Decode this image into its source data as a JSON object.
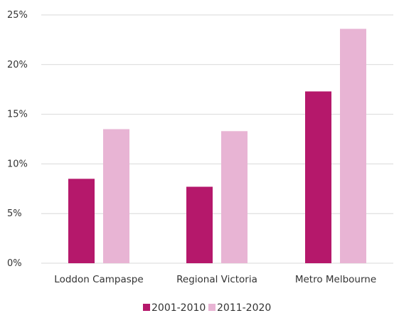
{
  "chart_data": {
    "type": "bar",
    "title": "",
    "xlabel": "",
    "ylabel": "",
    "categories": [
      "Loddon Campaspe",
      "Regional Victoria",
      "Metro Melbourne"
    ],
    "series": [
      {
        "name": "2001-2010",
        "values": [
          8.5,
          7.7,
          17.3
        ],
        "color": "#b5186b"
      },
      {
        "name": "2011-2020",
        "values": [
          13.5,
          13.3,
          23.6
        ],
        "color": "#e8b4d4"
      }
    ],
    "ylim": [
      0,
      25
    ],
    "yticks": [
      0,
      5,
      10,
      15,
      20,
      25
    ],
    "ytick_labels": [
      "0%",
      "5%",
      "10%",
      "15%",
      "20%",
      "25%"
    ],
    "grid": true,
    "grid_color": "#d9d9d9",
    "legend_position": "bottom-center"
  }
}
